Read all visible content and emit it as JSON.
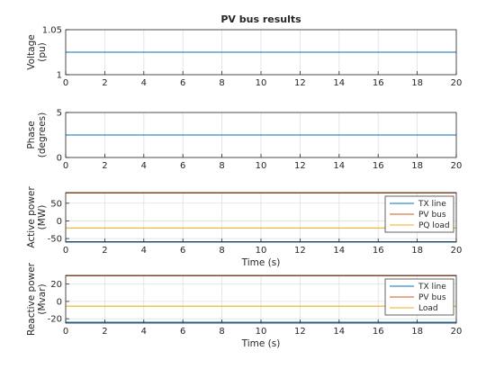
{
  "figure": {
    "title": "PV bus results"
  },
  "colors": {
    "series1": "#0072BD",
    "series2": "#D95319",
    "series3": "#EDB120",
    "grid": "#dfdfdf",
    "axis": "#262626"
  },
  "chart_data": [
    {
      "type": "line",
      "title": "PV bus results",
      "xlabel": "",
      "ylabel": [
        "Voltage",
        "(pu)"
      ],
      "xlim": [
        0,
        20
      ],
      "ylim": [
        1,
        1.05
      ],
      "xticks": [
        0,
        2,
        4,
        6,
        8,
        10,
        12,
        14,
        16,
        18,
        20
      ],
      "yticks": [
        1,
        1.05
      ],
      "ytick_labels": [
        "1",
        "1.05"
      ],
      "grid": true,
      "legend": null,
      "series": [
        {
          "x": [
            0,
            20
          ],
          "values": [
            1.025,
            1.025
          ],
          "color": "series1"
        }
      ]
    },
    {
      "type": "line",
      "title": "",
      "xlabel": "",
      "ylabel": [
        "Phase",
        "(degrees)"
      ],
      "xlim": [
        0,
        20
      ],
      "ylim": [
        0,
        5
      ],
      "xticks": [
        0,
        2,
        4,
        6,
        8,
        10,
        12,
        14,
        16,
        18,
        20
      ],
      "yticks": [
        0,
        5
      ],
      "ytick_labels": [
        "0",
        "5"
      ],
      "grid": true,
      "legend": null,
      "series": [
        {
          "x": [
            0,
            20
          ],
          "values": [
            2.5,
            2.5
          ],
          "color": "series1"
        }
      ]
    },
    {
      "type": "line",
      "title": "",
      "xlabel": "Time (s)",
      "ylabel": [
        "Active power",
        "(MW)"
      ],
      "xlim": [
        0,
        20
      ],
      "ylim": [
        -60,
        80
      ],
      "xticks": [
        0,
        2,
        4,
        6,
        8,
        10,
        12,
        14,
        16,
        18,
        20
      ],
      "yticks": [
        -50,
        0,
        50
      ],
      "ytick_labels": [
        "-50",
        "0",
        "50"
      ],
      "grid": true,
      "legend": "top-right",
      "series": [
        {
          "name": "TX line",
          "x": [
            0,
            20
          ],
          "values": [
            -59,
            -59
          ],
          "color": "series1"
        },
        {
          "name": "PV bus",
          "x": [
            0,
            20
          ],
          "values": [
            79,
            79
          ],
          "color": "series2"
        },
        {
          "name": "PQ load",
          "x": [
            0,
            20
          ],
          "values": [
            -20,
            -20
          ],
          "color": "series3"
        }
      ]
    },
    {
      "type": "line",
      "title": "",
      "xlabel": "Time (s)",
      "ylabel": [
        "Reactive power",
        "(Mvar)"
      ],
      "xlim": [
        0,
        20
      ],
      "ylim": [
        -25,
        30
      ],
      "xticks": [
        0,
        2,
        4,
        6,
        8,
        10,
        12,
        14,
        16,
        18,
        20
      ],
      "yticks": [
        -20,
        0,
        20
      ],
      "ytick_labels": [
        "-20",
        "0",
        "20"
      ],
      "grid": true,
      "legend": "top-right",
      "series": [
        {
          "name": "TX line",
          "x": [
            0,
            20
          ],
          "values": [
            -24,
            -24
          ],
          "color": "series1"
        },
        {
          "name": "PV bus",
          "x": [
            0,
            20
          ],
          "values": [
            29.5,
            29.5
          ],
          "color": "series2"
        },
        {
          "name": "Load",
          "x": [
            0,
            20
          ],
          "values": [
            -5.5,
            -5.5
          ],
          "color": "series3"
        }
      ]
    }
  ]
}
